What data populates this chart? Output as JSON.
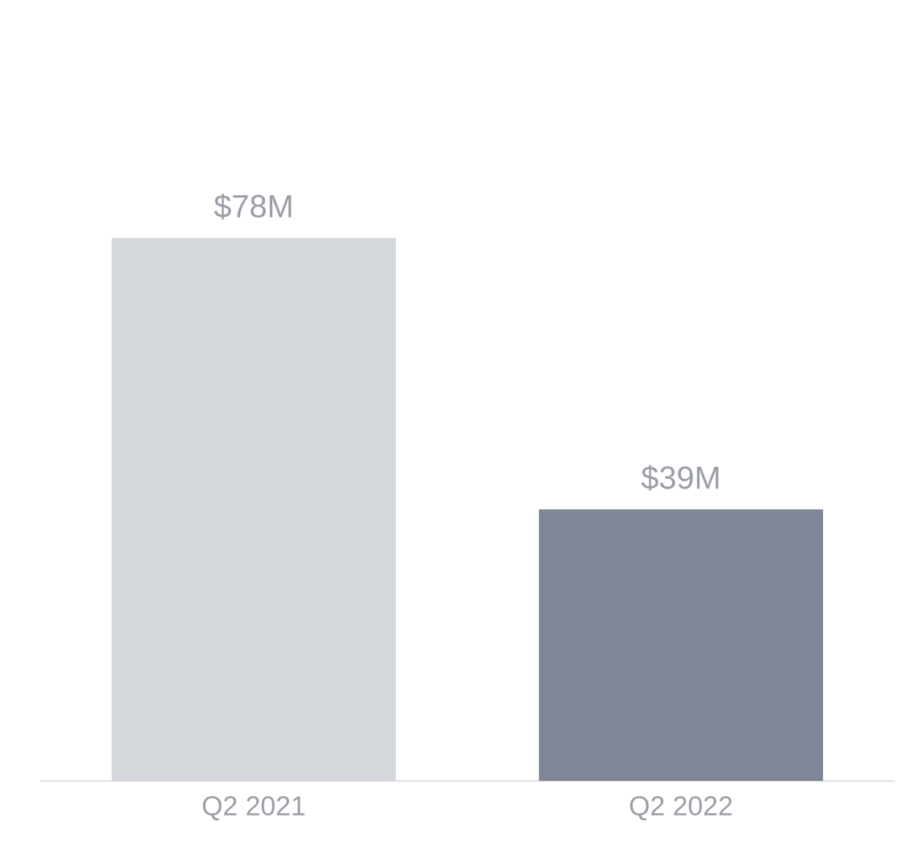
{
  "chart_data": {
    "type": "bar",
    "categories": [
      "Q2 2021",
      "Q2 2022"
    ],
    "values": [
      78,
      39
    ],
    "value_labels": [
      "$78M",
      "$39M"
    ],
    "colors": [
      "#d4d7dc",
      "#7f8797"
    ]
  }
}
